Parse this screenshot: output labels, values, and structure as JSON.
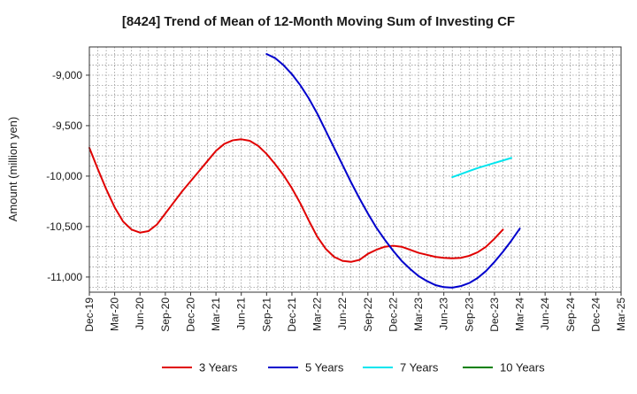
{
  "chart_data": {
    "type": "line",
    "title": "[8424]  Trend of Mean of 12-Month Moving Sum of Investing CF",
    "xlabel": "",
    "ylabel": "Amount (million yen)",
    "ylim": [
      -11150,
      -8720
    ],
    "yticks": [
      -9000,
      -9500,
      -10000,
      -10500,
      -11000
    ],
    "ytick_labels": [
      "-9,000",
      "-9,500",
      "-10,000",
      "-10,500",
      "-11,000"
    ],
    "x_start": "Dec-19",
    "x_end": "Mar-25",
    "x_tick_labels": [
      "Dec-19",
      "Mar-20",
      "Jun-20",
      "Sep-20",
      "Dec-20",
      "Mar-21",
      "Jun-21",
      "Sep-21",
      "Dec-21",
      "Mar-22",
      "Jun-22",
      "Sep-22",
      "Dec-22",
      "Mar-23",
      "Jun-23",
      "Sep-23",
      "Dec-23",
      "Mar-24",
      "Jun-24",
      "Sep-24",
      "Dec-24",
      "Mar-25"
    ],
    "grid": true,
    "legend_position": "bottom",
    "series": [
      {
        "name": "3 Years",
        "color": "#e00000",
        "start_index": 0,
        "values": [
          -9720,
          -9930,
          -10130,
          -10310,
          -10450,
          -10530,
          -10560,
          -10545,
          -10480,
          -10370,
          -10260,
          -10150,
          -10050,
          -9950,
          -9850,
          -9750,
          -9680,
          -9645,
          -9635,
          -9650,
          -9700,
          -9780,
          -9880,
          -9990,
          -10120,
          -10270,
          -10440,
          -10600,
          -10720,
          -10800,
          -10840,
          -10850,
          -10830,
          -10770,
          -10730,
          -10700,
          -10690,
          -10700,
          -10730,
          -10760,
          -10780,
          -10800,
          -10810,
          -10815,
          -10810,
          -10790,
          -10755,
          -10700,
          -10620,
          -10530
        ]
      },
      {
        "name": "5 Years",
        "color": "#0000cc",
        "start_index": 21,
        "values": [
          -8790,
          -8830,
          -8900,
          -8990,
          -9100,
          -9230,
          -9380,
          -9550,
          -9720,
          -9890,
          -10060,
          -10220,
          -10370,
          -10510,
          -10630,
          -10740,
          -10840,
          -10920,
          -10990,
          -11040,
          -11080,
          -11100,
          -11105,
          -11090,
          -11060,
          -11010,
          -10940,
          -10850,
          -10750,
          -10640,
          -10520
        ]
      },
      {
        "name": "7 Years",
        "color": "#00e5ee",
        "start_index": 43,
        "values": [
          -10010,
          -9980,
          -9950,
          -9920,
          -9895,
          -9870,
          -9845,
          -9820
        ]
      },
      {
        "name": "10 Years",
        "color": "#008000",
        "start_index": 0,
        "values": []
      }
    ]
  }
}
